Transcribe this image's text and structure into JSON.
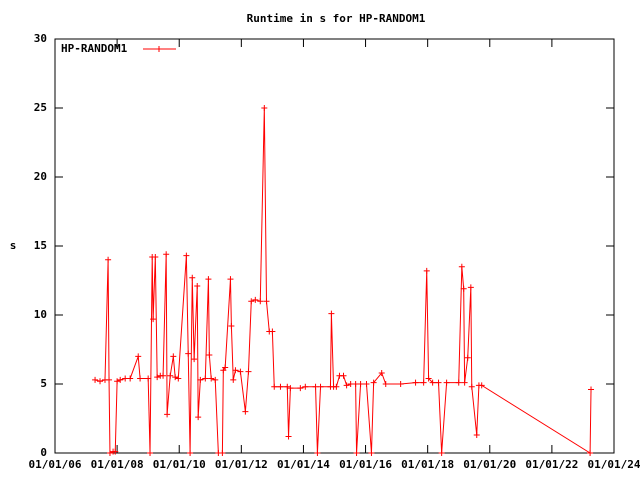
{
  "chart_data": {
    "type": "line",
    "title": "Runtime in s for HP-RANDOM1",
    "y_label": "s",
    "xlim": [
      2006,
      2024
    ],
    "xticks": [
      {
        "value": 2006,
        "label": "01/01/06"
      },
      {
        "value": 2008,
        "label": "01/01/08"
      },
      {
        "value": 2010,
        "label": "01/01/10"
      },
      {
        "value": 2012,
        "label": "01/01/12"
      },
      {
        "value": 2014,
        "label": "01/01/14"
      },
      {
        "value": 2016,
        "label": "01/01/16"
      },
      {
        "value": 2018,
        "label": "01/01/18"
      },
      {
        "value": 2020,
        "label": "01/01/20"
      },
      {
        "value": 2022,
        "label": "01/01/22"
      },
      {
        "value": 2024,
        "label": "01/01/24"
      }
    ],
    "ylim": [
      0,
      30
    ],
    "yticks": [
      0,
      5,
      10,
      15,
      20,
      25,
      30
    ],
    "legend": "top-left",
    "series": [
      {
        "name": "HP-RANDOM1",
        "color": "#ff0000",
        "x": [
          2007.29,
          2007.45,
          2007.61,
          2007.71,
          2007.74,
          2007.77,
          2007.87,
          2007.94,
          2008.0,
          2008.1,
          2008.26,
          2008.42,
          2008.68,
          2008.74,
          2009.0,
          2009.06,
          2009.13,
          2009.16,
          2009.23,
          2009.29,
          2009.39,
          2009.48,
          2009.58,
          2009.61,
          2009.71,
          2009.81,
          2009.87,
          2009.97,
          2010.23,
          2010.29,
          2010.35,
          2010.42,
          2010.48,
          2010.58,
          2010.61,
          2010.68,
          2010.84,
          2010.94,
          2010.97,
          2011.03,
          2011.16,
          2011.26,
          2011.39,
          2011.42,
          2011.48,
          2011.65,
          2011.68,
          2011.74,
          2011.81,
          2011.97,
          2012.13,
          2012.23,
          2012.32,
          2012.45,
          2012.61,
          2012.74,
          2012.81,
          2012.9,
          2013.0,
          2013.06,
          2013.26,
          2013.48,
          2013.52,
          2013.58,
          2013.9,
          2014.06,
          2014.39,
          2014.45,
          2014.55,
          2014.87,
          2014.9,
          2014.97,
          2015.06,
          2015.16,
          2015.29,
          2015.39,
          2015.52,
          2015.68,
          2015.71,
          2015.84,
          2016.03,
          2016.19,
          2016.26,
          2016.52,
          2016.65,
          2017.13,
          2017.61,
          2017.87,
          2017.97,
          2018.03,
          2018.16,
          2018.35,
          2018.45,
          2018.61,
          2019.0,
          2019.1,
          2019.16,
          2019.19,
          2019.29,
          2019.39,
          2019.42,
          2019.58,
          2019.65,
          2019.74,
          2023.23,
          2023.26
        ],
        "values": [
          5.3,
          5.2,
          5.3,
          14.0,
          5.3,
          0,
          0.1,
          0.1,
          5.2,
          5.3,
          5.4,
          5.4,
          7.0,
          5.4,
          5.4,
          0,
          14.2,
          9.7,
          14.2,
          5.5,
          5.6,
          5.6,
          14.4,
          2.8,
          5.6,
          7.0,
          5.5,
          5.4,
          14.3,
          7.2,
          0,
          12.7,
          6.8,
          12.1,
          2.6,
          5.3,
          5.4,
          12.6,
          7.1,
          5.4,
          5.3,
          0,
          0,
          6.0,
          6.2,
          12.6,
          9.2,
          5.3,
          6.0,
          5.9,
          3.0,
          5.9,
          11.0,
          11.1,
          11.0,
          25.0,
          11.0,
          8.8,
          8.8,
          4.8,
          4.8,
          4.8,
          1.2,
          4.7,
          4.7,
          4.8,
          4.8,
          0,
          4.8,
          4.8,
          10.1,
          4.8,
          4.8,
          5.6,
          5.6,
          4.9,
          5.0,
          5.0,
          0,
          5.0,
          5.0,
          0,
          5.1,
          5.8,
          5.0,
          5.0,
          5.1,
          5.1,
          13.2,
          5.4,
          5.1,
          5.1,
          0,
          5.1,
          5.1,
          13.5,
          11.9,
          5.1,
          6.9,
          12.0,
          4.8,
          1.3,
          4.9,
          4.9,
          0,
          4.6
        ]
      }
    ]
  }
}
